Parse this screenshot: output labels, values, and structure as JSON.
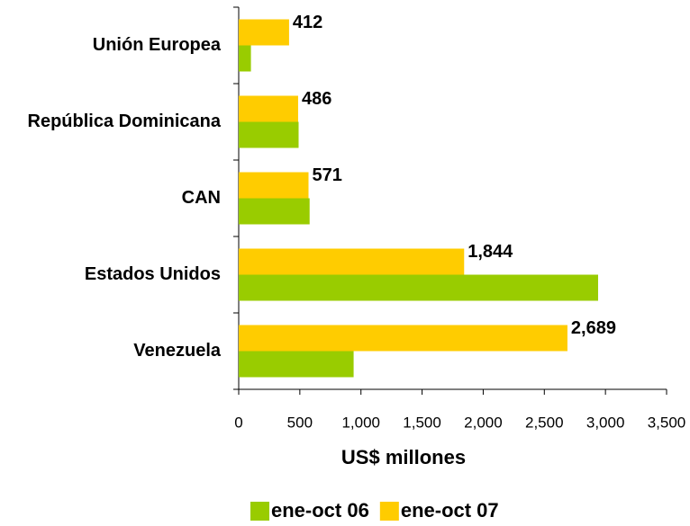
{
  "chart_data": {
    "type": "hbar",
    "categories": [
      "Unión Europea",
      "República Dominicana",
      "CAN",
      "Estados Unidos",
      "Venezuela"
    ],
    "series": [
      {
        "name": "ene-oct 06",
        "color": "#99cc00",
        "values": [
          100,
          490,
          580,
          2940,
          940
        ]
      },
      {
        "name": "ene-oct 07",
        "color": "#ffcc00",
        "values": [
          412,
          486,
          571,
          1844,
          2689
        ],
        "value_labels": [
          "412",
          "486",
          "571",
          "1,844",
          "2,689"
        ]
      }
    ],
    "xlabel": "US$ millones",
    "xlim": [
      0,
      3500
    ],
    "xticks": [
      0,
      500,
      {
        "value": 1000,
        "label": "1,000"
      },
      {
        "value": 1500,
        "label": "1,500"
      },
      {
        "value": 2000,
        "label": "2,000"
      },
      {
        "value": 2500,
        "label": "2,500"
      },
      {
        "value": 3000,
        "label": "3,000"
      },
      {
        "value": 3500,
        "label": "3,500"
      }
    ],
    "legend": "bottom",
    "grid": false
  }
}
